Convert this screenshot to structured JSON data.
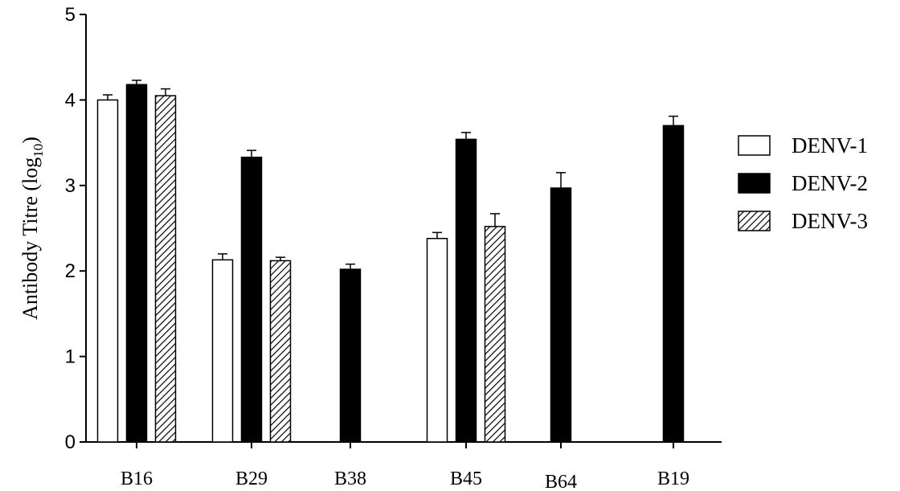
{
  "chart_data": {
    "type": "bar",
    "title": "",
    "xlabel": "",
    "ylabel": "Antibody Titre (log",
    "ylabel_subscript": "10",
    "ylabel_close": ")",
    "ylim": [
      0,
      5
    ],
    "yticks": [
      0,
      1,
      2,
      3,
      4,
      5
    ],
    "grid": false,
    "legend_position": "right",
    "categories": [
      "B16",
      "B29",
      "B38",
      "B45",
      "B64",
      "B19"
    ],
    "series": [
      {
        "name": "DENV-1",
        "fill": "white",
        "values": [
          4.0,
          2.13,
          null,
          2.38,
          null,
          null
        ],
        "errors": [
          0.06,
          0.07,
          null,
          0.07,
          null,
          null
        ]
      },
      {
        "name": "DENV-2",
        "fill": "black",
        "values": [
          4.18,
          3.33,
          2.02,
          3.54,
          2.97,
          3.7
        ],
        "errors": [
          0.05,
          0.08,
          0.06,
          0.08,
          0.18,
          0.11
        ]
      },
      {
        "name": "DENV-3",
        "fill": "hatched",
        "values": [
          4.05,
          2.12,
          null,
          2.52,
          null,
          null
        ],
        "errors": [
          0.08,
          0.04,
          null,
          0.15,
          null,
          null
        ]
      }
    ]
  }
}
